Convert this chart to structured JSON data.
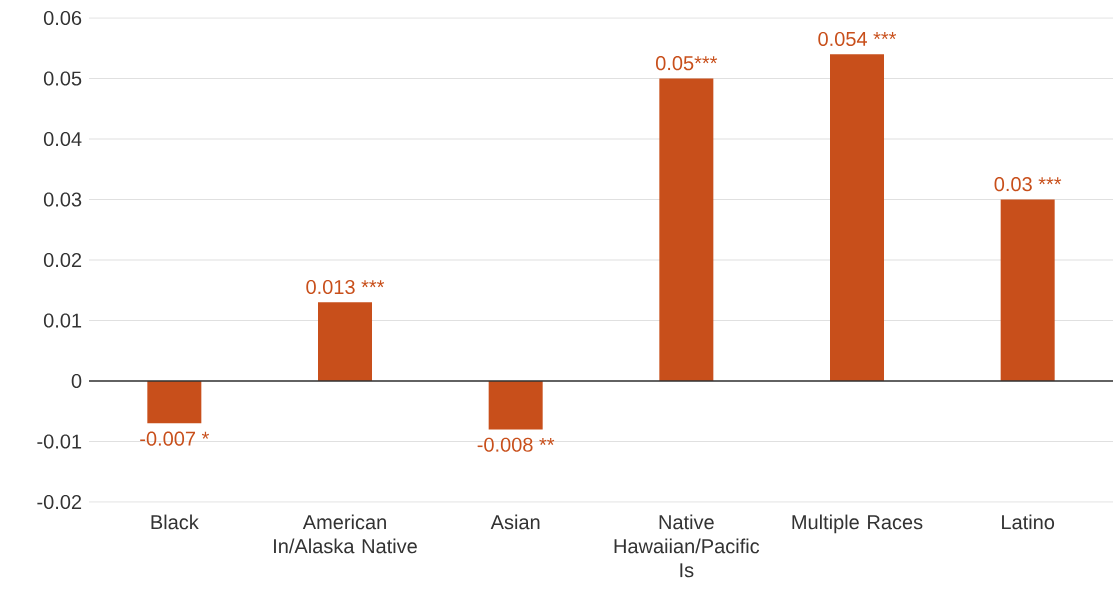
{
  "chart_data": {
    "type": "bar",
    "categories": [
      "Black",
      "American In/Alaska Native",
      "Asian",
      "Native Hawaiian/Pacific Is",
      "Multiple Races",
      "Latino"
    ],
    "values": [
      -0.007,
      0.013,
      -0.008,
      0.05,
      0.054,
      0.03
    ],
    "value_labels": [
      "-0.007 *",
      "0.013 ***",
      "-0.008 **",
      "0.05***",
      "0.054 ***",
      "0.03 ***"
    ],
    "color": "#c84f1b",
    "ylim": [
      -0.02,
      0.06
    ],
    "yticks": [
      -0.02,
      -0.01,
      0,
      0.01,
      0.02,
      0.03,
      0.04,
      0.05,
      0.06
    ],
    "grid": "y"
  }
}
